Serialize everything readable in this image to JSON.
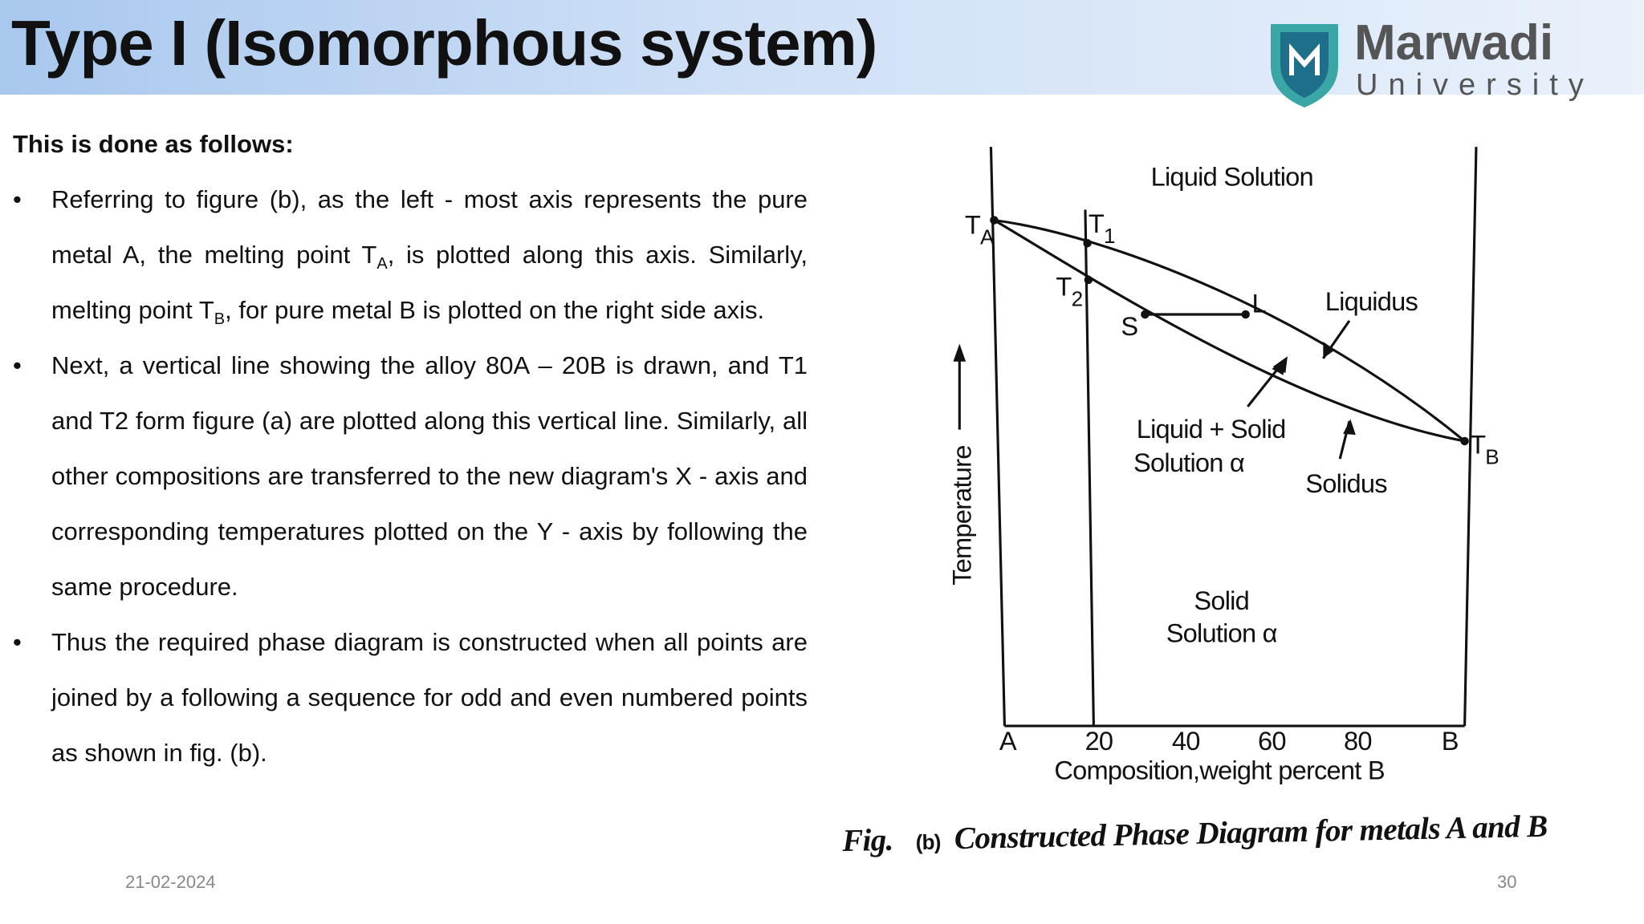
{
  "header": {
    "title": "Type I (Isomorphous system)",
    "logo": {
      "name": "Marwadi",
      "subtitle": "University"
    }
  },
  "content": {
    "intro": "This is done as follows:",
    "bullets": [
      [
        "Referring to figure (b), as the left - most axis represents the pure metal A, the melting point T",
        {
          "sub": "A"
        },
        ", is plotted along this axis. Similarly, melting point T",
        {
          "sub": "B"
        },
        ", for pure metal B is plotted on the right side axis."
      ],
      [
        "Next, a vertical line showing the alloy 80A – 20B is drawn, and T1 and T2 form figure (a) are plotted along this vertical line.  Similarly, all other compositions are transferred to the new diagram's X - axis and corresponding temperatures plotted on the Y - axis by following the same procedure."
      ],
      [
        "Thus the required phase diagram is constructed when all points are joined by a following a sequence for odd and even numbered points as shown in fig. (b)."
      ]
    ]
  },
  "figure": {
    "liquid_region": "Liquid Solution",
    "two_phase_region": [
      "Liquid + Solid",
      "Solution α"
    ],
    "solid_region": [
      "Solid",
      "Solution α"
    ],
    "liquidus": "Liquidus",
    "solidus": "Solidus",
    "points": {
      "TA": {
        "text": "T",
        "sub": "A"
      },
      "T1": {
        "text": "T",
        "sub": "1"
      },
      "T2": {
        "text": "T",
        "sub": "2"
      },
      "TB": {
        "text": "T",
        "sub": "B"
      },
      "S": "S",
      "L": "L"
    },
    "y_label": "Temperature",
    "x_ticks": [
      "A",
      "20",
      "40",
      "60",
      "80",
      "B"
    ],
    "x_label": "Composition,weight percent B",
    "caption": {
      "prefix": "Fig.",
      "tag": "(b)",
      "text": "Constructed Phase Diagram for metals A and B"
    }
  },
  "footer": {
    "date": "21-02-2024",
    "page": "30"
  }
}
